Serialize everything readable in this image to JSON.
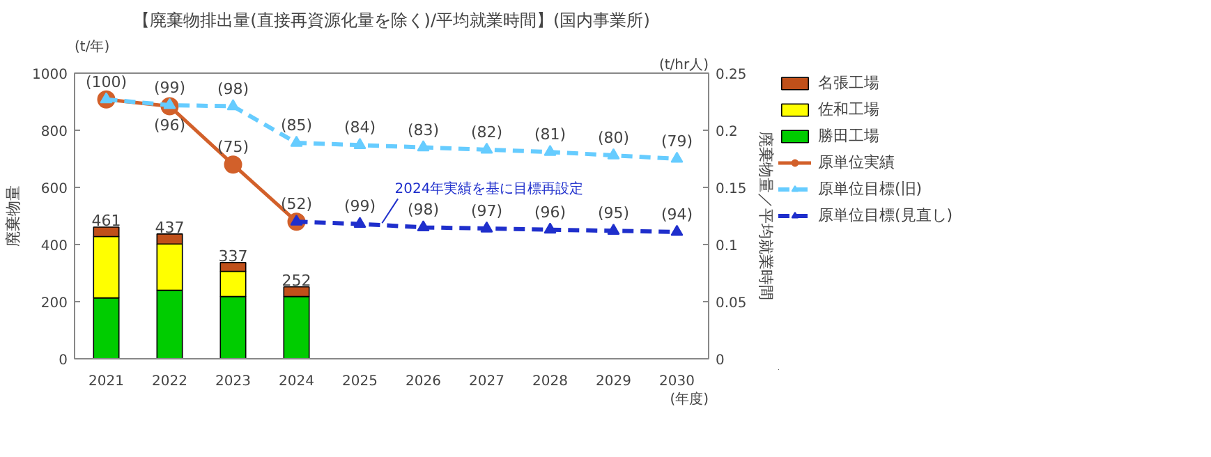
{
  "chart_data": {
    "type": "bar",
    "stacked": true,
    "title": "【廃棄物排出量(直接再資源化量を除く)/平均就業時間】(国内事業所)",
    "xlabel": "(年度)",
    "ylabel": "廃棄物量",
    "y2label": "廃棄物量／平均就業時間",
    "annotations": [
      "(t/年)",
      "(t/hr人)",
      "2024年実績を基に目標再設定",
      "(100)",
      "(96)",
      "(75)",
      "(52)",
      "(99)",
      "(98)",
      "(85)",
      "(84)",
      "(83)",
      "(82)",
      "(81)",
      "(80)",
      "(79)",
      "(99)",
      "(98)",
      "(97)",
      "(96)",
      "(95)",
      "(94)"
    ],
    "categories": [
      "2021",
      "2022",
      "2023",
      "2024",
      "2025",
      "2026",
      "2027",
      "2028",
      "2029",
      "2030"
    ],
    "series": [
      {
        "name": "勝田工場",
        "color": "#00cc00",
        "values": [
          213,
          240,
          218,
          218,
          null,
          null,
          null,
          null,
          null,
          null
        ]
      },
      {
        "name": "佐和工場",
        "color": "#ffff00",
        "values": [
          215,
          162,
          88,
          null,
          null,
          null,
          null,
          null,
          null,
          null
        ]
      },
      {
        "name": "名張工場",
        "color": "#c0501a",
        "values": [
          33,
          35,
          31,
          34,
          null,
          null,
          null,
          null,
          null,
          null
        ]
      },
      {
        "name": "原単位実績",
        "type": "line",
        "axis": "y2",
        "color": "#d2602a",
        "marker": "circle",
        "line_style": "solid",
        "values": [
          0.227,
          0.221,
          0.17,
          0.12,
          null,
          null,
          null,
          null,
          null,
          null
        ]
      },
      {
        "name": "原単位目標(旧)",
        "type": "line",
        "axis": "y2",
        "color": "#66ccff",
        "marker": "triangle",
        "line_style": "dashed",
        "values": [
          0.227,
          0.222,
          0.221,
          0.189,
          0.187,
          0.185,
          0.183,
          0.181,
          0.178,
          0.175
        ]
      },
      {
        "name": "原単位目標(見直し)",
        "type": "line",
        "axis": "y2",
        "color": "#1f2fcc",
        "marker": "triangle",
        "line_style": "dashed",
        "values": [
          null,
          null,
          null,
          0.12,
          0.118,
          0.115,
          0.114,
          0.113,
          0.112,
          0.111
        ]
      }
    ],
    "totals": [
      "461",
      "437",
      "337",
      "252",
      null,
      null,
      null,
      null,
      null,
      null
    ],
    "ylim": [
      0,
      1000
    ],
    "yticks": [
      0,
      200,
      400,
      600,
      800,
      1000
    ],
    "y2lim": [
      0,
      0.25
    ],
    "y2ticks": [
      0,
      0.05,
      0.1,
      0.15,
      0.2,
      0.25
    ],
    "grid": false,
    "legend": "right"
  }
}
